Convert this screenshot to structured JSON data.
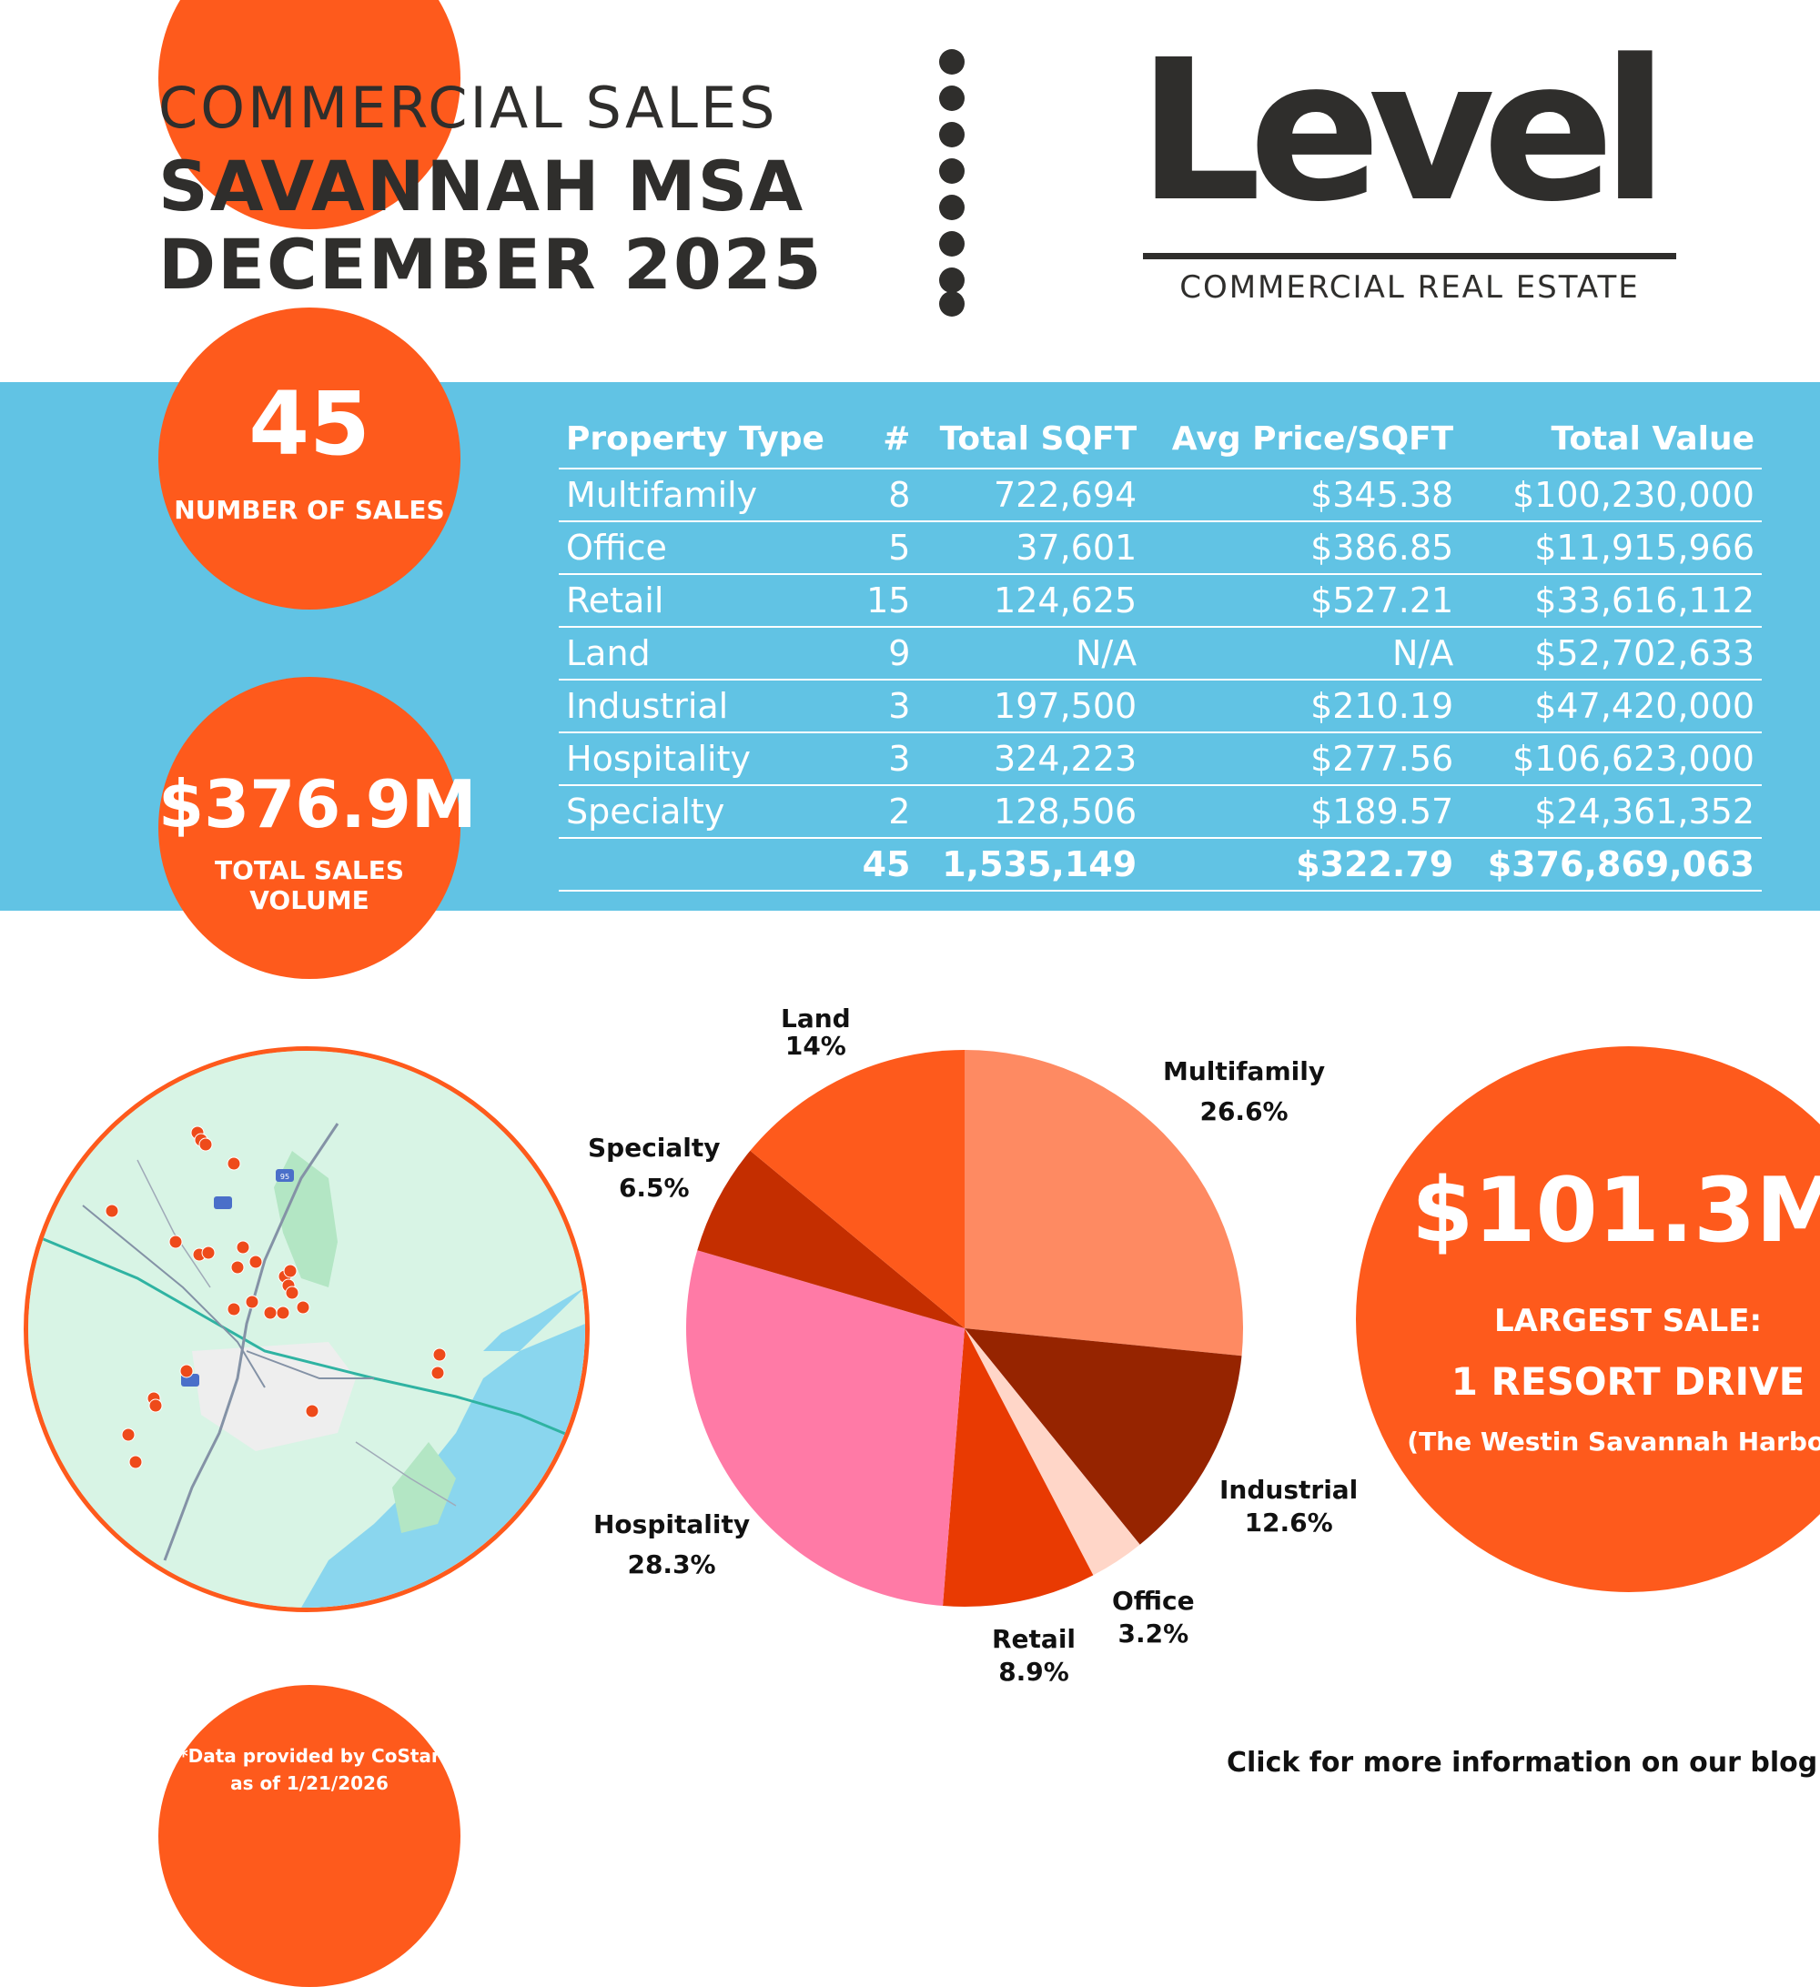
{
  "header": {
    "title_line1": "COMMERCIAL SALES",
    "title_line2": "SAVANNAH MSA",
    "title_line3": "DECEMBER 2025"
  },
  "logo": {
    "brand": "Level",
    "tagline": "COMMERCIAL REAL ESTATE"
  },
  "stats": {
    "number_of_sales": "45",
    "number_of_sales_label": "NUMBER OF SALES",
    "total_volume": "$376.9M",
    "total_volume_label": "TOTAL SALES VOLUME"
  },
  "table": {
    "headers": [
      "Property Type",
      "#",
      "Total SQFT",
      "Avg Price/SQFT",
      "Total Value"
    ],
    "rows": [
      [
        "Multifamily",
        "8",
        "722,694",
        "$345.38",
        "$100,230,000"
      ],
      [
        "Office",
        "5",
        "37,601",
        "$386.85",
        "$11,915,966"
      ],
      [
        "Retail",
        "15",
        "124,625",
        "$527.21",
        "$33,616,112"
      ],
      [
        "Land",
        "9",
        "N/A",
        "N/A",
        "$52,702,633"
      ],
      [
        "Industrial",
        "3",
        "197,500",
        "$210.19",
        "$47,420,000"
      ],
      [
        "Hospitality",
        "3",
        "324,223",
        "$277.56",
        "$106,623,000"
      ],
      [
        "Specialty",
        "2",
        "128,506",
        "$189.57",
        "$24,361,352"
      ]
    ],
    "totals": [
      "",
      "45",
      "1,535,149",
      "$322.79",
      "$376,869,063"
    ]
  },
  "chart_data": {
    "type": "pie",
    "title": "",
    "slices": [
      {
        "label": "Multifamily",
        "value": 26.6,
        "display": "26.6%",
        "color": "#fe8a62"
      },
      {
        "label": "Industrial",
        "value": 12.6,
        "display": "12.6%",
        "color": "#962400"
      },
      {
        "label": "Office",
        "value": 3.2,
        "display": "3.2%",
        "color": "#ffd6c8"
      },
      {
        "label": "Retail",
        "value": 8.9,
        "display": "8.9%",
        "color": "#e93a02"
      },
      {
        "label": "Hospitality",
        "value": 28.3,
        "display": "28.3%",
        "color": "#ff7aa6"
      },
      {
        "label": "Specialty",
        "value": 6.5,
        "display": "6.5%",
        "color": "#c42e00"
      },
      {
        "label": "Land",
        "value": 14,
        "display": "14%",
        "color": "#fe5a1c"
      }
    ]
  },
  "largest_sale": {
    "amount": "$101.3M",
    "label": "LARGEST SALE:",
    "address": "1 RESORT DRIVE",
    "property": "(The Westin Savannah Harbor)"
  },
  "map": {
    "highway_label": "95"
  },
  "footer": {
    "source_line1": "*Data provided by CoStar",
    "source_line2": "as of 1/21/2026",
    "blog_link": "Click for more information on our blog."
  },
  "colors": {
    "accent": "#fe5a1c",
    "band": "#61c3e4",
    "text_dark": "#2f2e2c"
  }
}
